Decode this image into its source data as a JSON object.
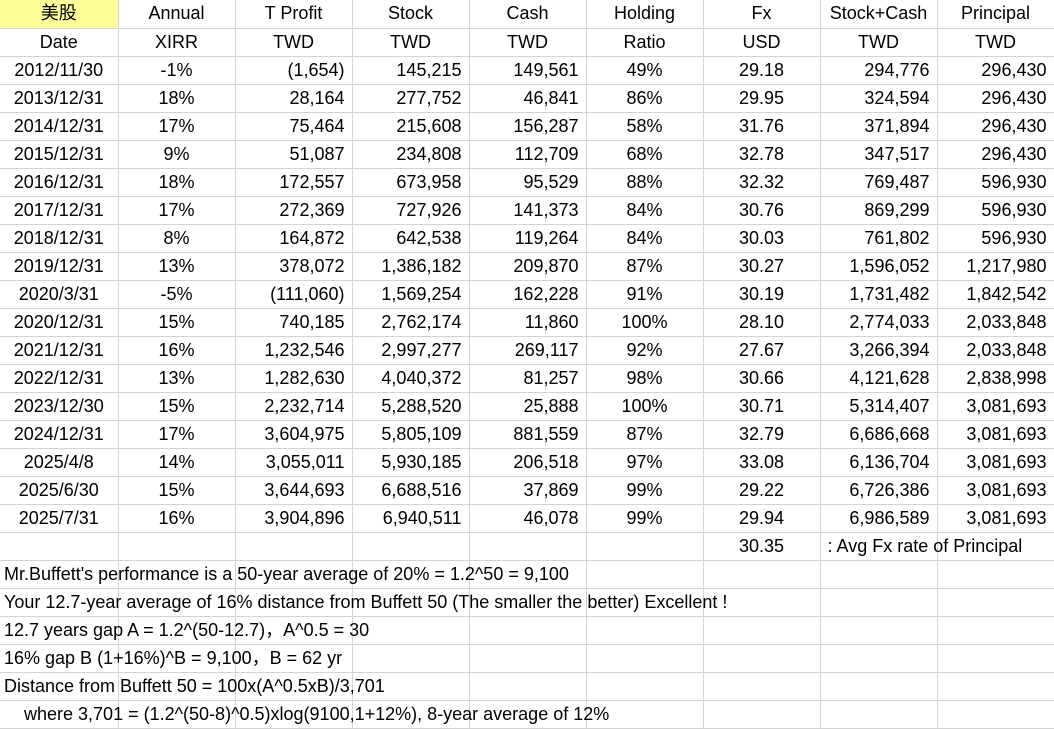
{
  "header": {
    "row1": [
      "美股",
      "Annual",
      "T Profit",
      "Stock",
      "Cash",
      "Holding",
      "Fx",
      "Stock+Cash",
      "Principal"
    ],
    "row2": [
      "Date",
      "XIRR",
      "TWD",
      "TWD",
      "TWD",
      "Ratio",
      "USD",
      "TWD",
      "TWD"
    ]
  },
  "rows": [
    [
      "2012/11/30",
      "-1%",
      "(1,654)",
      "145,215",
      "149,561",
      "49%",
      "29.18",
      "294,776",
      "296,430"
    ],
    [
      "2013/12/31",
      "18%",
      "28,164",
      "277,752",
      "46,841",
      "86%",
      "29.95",
      "324,594",
      "296,430"
    ],
    [
      "2014/12/31",
      "17%",
      "75,464",
      "215,608",
      "156,287",
      "58%",
      "31.76",
      "371,894",
      "296,430"
    ],
    [
      "2015/12/31",
      "9%",
      "51,087",
      "234,808",
      "112,709",
      "68%",
      "32.78",
      "347,517",
      "296,430"
    ],
    [
      "2016/12/31",
      "18%",
      "172,557",
      "673,958",
      "95,529",
      "88%",
      "32.32",
      "769,487",
      "596,930"
    ],
    [
      "2017/12/31",
      "17%",
      "272,369",
      "727,926",
      "141,373",
      "84%",
      "30.76",
      "869,299",
      "596,930"
    ],
    [
      "2018/12/31",
      "8%",
      "164,872",
      "642,538",
      "119,264",
      "84%",
      "30.03",
      "761,802",
      "596,930"
    ],
    [
      "2019/12/31",
      "13%",
      "378,072",
      "1,386,182",
      "209,870",
      "87%",
      "30.27",
      "1,596,052",
      "1,217,980"
    ],
    [
      "2020/3/31",
      "-5%",
      "(111,060)",
      "1,569,254",
      "162,228",
      "91%",
      "30.19",
      "1,731,482",
      "1,842,542"
    ],
    [
      "2020/12/31",
      "15%",
      "740,185",
      "2,762,174",
      "11,860",
      "100%",
      "28.10",
      "2,774,033",
      "2,033,848"
    ],
    [
      "2021/12/31",
      "16%",
      "1,232,546",
      "2,997,277",
      "269,117",
      "92%",
      "27.67",
      "3,266,394",
      "2,033,848"
    ],
    [
      "2022/12/31",
      "13%",
      "1,282,630",
      "4,040,372",
      "81,257",
      "98%",
      "30.66",
      "4,121,628",
      "2,838,998"
    ],
    [
      "2023/12/30",
      "15%",
      "2,232,714",
      "5,288,520",
      "25,888",
      "100%",
      "30.71",
      "5,314,407",
      "3,081,693"
    ],
    [
      "2024/12/31",
      "17%",
      "3,604,975",
      "5,805,109",
      "881,559",
      "87%",
      "32.79",
      "6,686,668",
      "3,081,693"
    ],
    [
      "2025/4/8",
      "14%",
      "3,055,011",
      "5,930,185",
      "206,518",
      "97%",
      "33.08",
      "6,136,704",
      "3,081,693"
    ],
    [
      "2025/6/30",
      "15%",
      "3,644,693",
      "6,688,516",
      "37,869",
      "99%",
      "29.22",
      "6,726,386",
      "3,081,693"
    ],
    [
      "2025/7/31",
      "16%",
      "3,904,896",
      "6,940,511",
      "46,078",
      "99%",
      "29.94",
      "6,986,589",
      "3,081,693"
    ]
  ],
  "avg_fx": {
    "value": "30.35",
    "label": ": Avg Fx rate of Principal"
  },
  "notes": [
    "Mr.Buffett's performance is a 50-year average of 20% = 1.2^50 = 9,100",
    "Your 12.7-year average of 16% distance from Buffett 50 (The smaller the better) Excellent !",
    "12.7 years gap A = 1.2^(50-12.7)，A^0.5 = 30",
    "16% gap B (1+16%)^B = 9,100，B = 62 yr",
    "Distance from Buffett 50 = 100x(A^0.5xB)/3,701",
    "    where 3,701 = (1.2^(50-8)^0.5)xlog(9100,1+12%), 8-year average of 12%"
  ],
  "colors": {
    "header_highlight": "#ffff99",
    "gridline": "#d4d4d4"
  }
}
